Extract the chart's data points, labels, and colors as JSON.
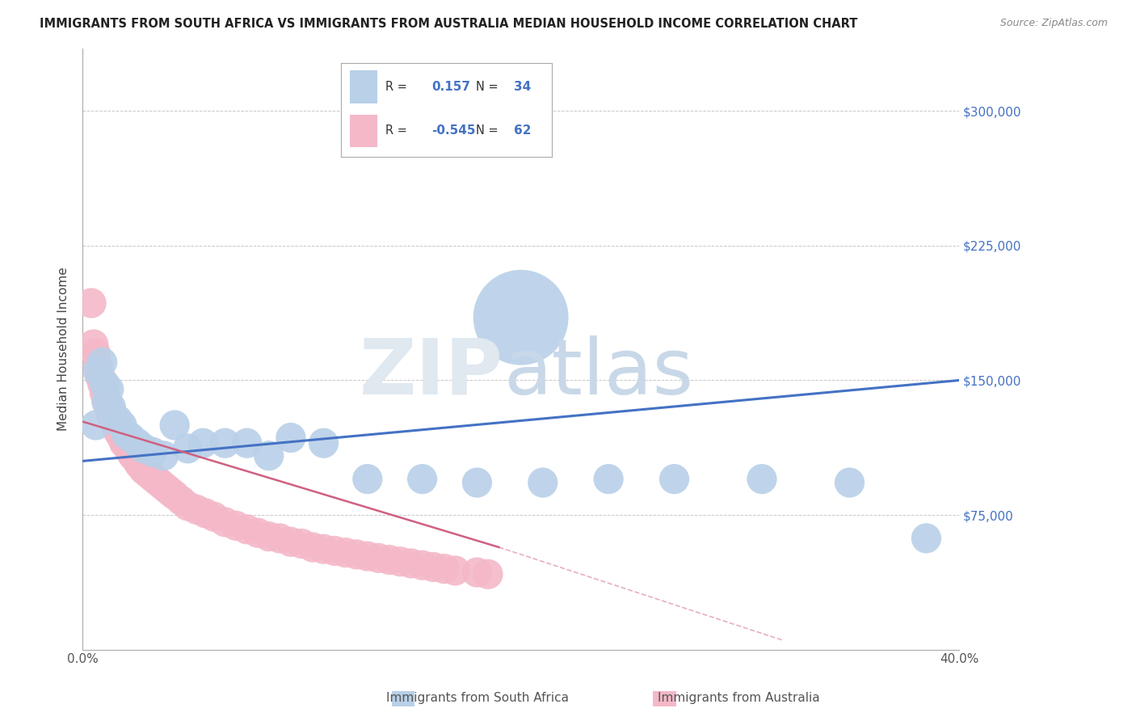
{
  "title": "IMMIGRANTS FROM SOUTH AFRICA VS IMMIGRANTS FROM AUSTRALIA MEDIAN HOUSEHOLD INCOME CORRELATION CHART",
  "source": "Source: ZipAtlas.com",
  "ylabel": "Median Household Income",
  "xmin": 0.0,
  "xmax": 0.4,
  "ymin": 0,
  "ymax": 335000,
  "yticks": [
    0,
    75000,
    150000,
    225000,
    300000
  ],
  "ytick_labels": [
    "",
    "$75,000",
    "$150,000",
    "$225,000",
    "$300,000"
  ],
  "xticks": [
    0.0,
    0.1,
    0.2,
    0.3,
    0.4
  ],
  "xtick_labels": [
    "0.0%",
    "",
    "",
    "",
    "40.0%"
  ],
  "legend_r_sa": "0.157",
  "legend_n_sa": "34",
  "legend_r_au": "-0.545",
  "legend_n_au": "62",
  "color_sa": "#b8d0e8",
  "color_sa_dark": "#4472c4",
  "color_au": "#f4b8c8",
  "color_au_dark": "#d06080",
  "background_color": "#ffffff",
  "grid_color": "#c8c8cc",
  "sa_x": [
    0.006,
    0.007,
    0.009,
    0.01,
    0.011,
    0.012,
    0.013,
    0.014,
    0.016,
    0.018,
    0.02,
    0.022,
    0.025,
    0.028,
    0.032,
    0.037,
    0.042,
    0.048,
    0.055,
    0.065,
    0.075,
    0.085,
    0.095,
    0.11,
    0.13,
    0.155,
    0.18,
    0.21,
    0.24,
    0.27,
    0.31,
    0.35,
    0.385,
    0.2
  ],
  "sa_y": [
    125000,
    155000,
    160000,
    148000,
    138000,
    145000,
    135000,
    130000,
    128000,
    125000,
    120000,
    118000,
    115000,
    112000,
    110000,
    108000,
    125000,
    112000,
    115000,
    115000,
    115000,
    108000,
    118000,
    115000,
    95000,
    95000,
    93000,
    93000,
    95000,
    95000,
    95000,
    93000,
    62000,
    185000
  ],
  "sa_sizes_raw": [
    40,
    40,
    40,
    40,
    40,
    40,
    40,
    40,
    40,
    40,
    40,
    40,
    40,
    40,
    40,
    40,
    40,
    40,
    40,
    40,
    40,
    40,
    40,
    40,
    40,
    40,
    40,
    40,
    40,
    40,
    40,
    40,
    40,
    400
  ],
  "au_x": [
    0.004,
    0.005,
    0.006,
    0.007,
    0.008,
    0.009,
    0.01,
    0.01,
    0.011,
    0.012,
    0.013,
    0.014,
    0.015,
    0.016,
    0.017,
    0.018,
    0.019,
    0.02,
    0.021,
    0.022,
    0.023,
    0.024,
    0.025,
    0.026,
    0.027,
    0.028,
    0.03,
    0.032,
    0.034,
    0.036,
    0.038,
    0.04,
    0.042,
    0.045,
    0.048,
    0.052,
    0.056,
    0.06,
    0.065,
    0.07,
    0.075,
    0.08,
    0.085,
    0.09,
    0.095,
    0.1,
    0.105,
    0.11,
    0.115,
    0.12,
    0.125,
    0.13,
    0.135,
    0.14,
    0.145,
    0.15,
    0.155,
    0.16,
    0.165,
    0.17,
    0.18,
    0.185
  ],
  "au_y": [
    193000,
    170000,
    165000,
    158000,
    152000,
    148000,
    148000,
    143000,
    138000,
    135000,
    130000,
    128000,
    125000,
    122000,
    120000,
    118000,
    115000,
    115000,
    112000,
    110000,
    108000,
    108000,
    105000,
    103000,
    102000,
    100000,
    98000,
    96000,
    94000,
    92000,
    90000,
    88000,
    86000,
    83000,
    80000,
    78000,
    76000,
    74000,
    71000,
    69000,
    67000,
    65000,
    63000,
    62000,
    60000,
    59000,
    57000,
    56000,
    55000,
    54000,
    53000,
    52000,
    51000,
    50000,
    49000,
    48000,
    47000,
    46000,
    45000,
    44000,
    43000,
    42000
  ],
  "au_sizes_raw": [
    40,
    40,
    40,
    40,
    40,
    40,
    40,
    40,
    40,
    40,
    40,
    40,
    40,
    40,
    40,
    40,
    40,
    40,
    40,
    40,
    40,
    40,
    40,
    40,
    40,
    40,
    40,
    40,
    40,
    40,
    40,
    40,
    40,
    40,
    40,
    40,
    40,
    40,
    40,
    40,
    40,
    40,
    40,
    40,
    40,
    40,
    40,
    40,
    40,
    40,
    40,
    40,
    40,
    40,
    40,
    40,
    40,
    40,
    40,
    40,
    40,
    40
  ],
  "sa_trendline_x": [
    0.0,
    0.4
  ],
  "sa_trendline_y": [
    105000,
    150000
  ],
  "au_trendline_x0": 0.0,
  "au_trendline_x1": 0.19,
  "au_trendline_xdash1": 0.19,
  "au_trendline_xdash2": 0.32,
  "au_trendline_y0": 127000,
  "au_trendline_y1": 57000,
  "au_trendline_ydash1": 57000,
  "au_trendline_ydash2": 5000
}
